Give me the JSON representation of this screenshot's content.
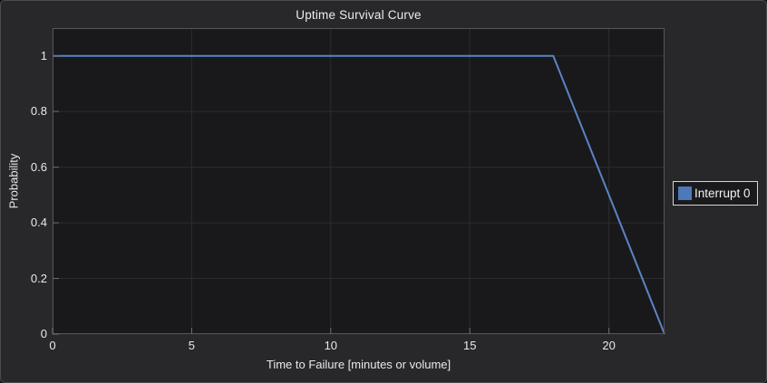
{
  "chart_data": {
    "type": "line",
    "title": "Uptime Survival Curve",
    "xlabel": "Time to Failure [minutes or volume]",
    "ylabel": "Probability",
    "xlim": [
      0,
      22
    ],
    "ylim": [
      0,
      1.1
    ],
    "x_ticks": [
      0,
      5,
      10,
      15,
      20
    ],
    "y_ticks": [
      0,
      0.2,
      0.4,
      0.6,
      0.8,
      1
    ],
    "grid": true,
    "legend": {
      "position": "right",
      "entries": [
        {
          "label": "Interrupt 0",
          "color": "#4d79ba"
        }
      ]
    },
    "series": [
      {
        "name": "Interrupt 0",
        "color": "#5b84c4",
        "points": [
          [
            0,
            1
          ],
          [
            18,
            1
          ],
          [
            22,
            0
          ]
        ]
      }
    ]
  },
  "theme": {
    "figure_background": "#28282b",
    "plot_background": "#19191b",
    "grid_color": "#2d2d30",
    "axis_color": "#56565a",
    "tick_mark_color": "#6e6e72",
    "text_color": "#e9e9ea",
    "legend_border": "#d4d4d4"
  }
}
